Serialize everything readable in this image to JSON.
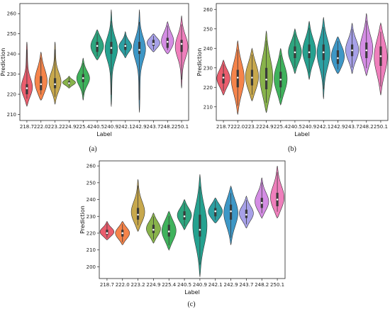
{
  "chart_data": [
    {
      "type": "violin",
      "panel": "(a)",
      "xlabel": "Label",
      "ylabel": "Prediction",
      "ylim": [
        207,
        265
      ],
      "yticks": [
        210,
        220,
        230,
        240,
        250,
        260
      ],
      "categories": [
        "218.7",
        "222.0",
        "223.2",
        "224.9",
        "225.4",
        "240.5",
        "240.9",
        "242.1",
        "242.9",
        "243.7",
        "248.2",
        "250.1"
      ],
      "violins": [
        {
          "min": 214,
          "q1": 220,
          "median": 223,
          "q3": 225,
          "max": 246
        },
        {
          "min": 217,
          "q1": 222,
          "median": 225,
          "q3": 229,
          "max": 241
        },
        {
          "min": 215,
          "q1": 223,
          "median": 225,
          "q3": 228,
          "max": 246
        },
        {
          "min": 223,
          "q1": 225,
          "median": 225.5,
          "q3": 226.5,
          "max": 229
        },
        {
          "min": 217,
          "q1": 226,
          "median": 228,
          "q3": 230,
          "max": 238
        },
        {
          "min": 237,
          "q1": 241,
          "median": 244,
          "q3": 246,
          "max": 252
        },
        {
          "min": 214,
          "q1": 240,
          "median": 243,
          "q3": 246,
          "max": 262
        },
        {
          "min": 238,
          "q1": 242,
          "median": 244,
          "q3": 245,
          "max": 251
        },
        {
          "min": 211,
          "q1": 240,
          "median": 242,
          "q3": 246,
          "max": 262
        },
        {
          "min": 241,
          "q1": 244,
          "median": 245,
          "q3": 247,
          "max": 250
        },
        {
          "min": 240,
          "q1": 243,
          "median": 246,
          "q3": 248,
          "max": 256
        },
        {
          "min": 223,
          "q1": 241,
          "median": 245,
          "q3": 247,
          "max": 259
        }
      ]
    },
    {
      "type": "violin",
      "panel": "(b)",
      "xlabel": "Label",
      "ylabel": "Prediction",
      "ylim": [
        203,
        263
      ],
      "yticks": [
        210,
        220,
        230,
        240,
        250,
        260
      ],
      "categories": [
        "218.7",
        "222.0",
        "223.2",
        "224.9",
        "225.4",
        "240.5",
        "240.9",
        "242.1",
        "242.9",
        "243.7",
        "248.2",
        "250.1"
      ],
      "violins": [
        {
          "min": 216,
          "q1": 222,
          "median": 225,
          "q3": 227,
          "max": 234
        },
        {
          "min": 206,
          "q1": 220,
          "median": 225,
          "q3": 229,
          "max": 244
        },
        {
          "min": 213,
          "q1": 221,
          "median": 225,
          "q3": 229,
          "max": 240
        },
        {
          "min": 207,
          "q1": 219,
          "median": 224,
          "q3": 230,
          "max": 249
        },
        {
          "min": 211,
          "q1": 220,
          "median": 224,
          "q3": 228,
          "max": 240
        },
        {
          "min": 227,
          "q1": 235,
          "median": 238,
          "q3": 241,
          "max": 250
        },
        {
          "min": 224,
          "q1": 235,
          "median": 238,
          "q3": 242,
          "max": 254
        },
        {
          "min": 214,
          "q1": 234,
          "median": 238,
          "q3": 242,
          "max": 256
        },
        {
          "min": 227,
          "q1": 232,
          "median": 235,
          "q3": 239,
          "max": 246
        },
        {
          "min": 227,
          "q1": 236,
          "median": 239,
          "q3": 242,
          "max": 253
        },
        {
          "min": 226,
          "q1": 235,
          "median": 239,
          "q3": 243,
          "max": 258
        },
        {
          "min": 216,
          "q1": 231,
          "median": 236,
          "q3": 241,
          "max": 253
        }
      ]
    },
    {
      "type": "violin",
      "panel": "(c)",
      "xlabel": "Label",
      "ylabel": "Prediction",
      "ylim": [
        193,
        263
      ],
      "yticks": [
        200,
        210,
        220,
        230,
        240,
        250,
        260
      ],
      "categories": [
        "218.7",
        "222.0",
        "223.2",
        "224.9",
        "225.4",
        "240.5",
        "240.9",
        "242.1",
        "242.9",
        "243.7",
        "248.2",
        "250.1"
      ],
      "violins": [
        {
          "min": 216,
          "q1": 219,
          "median": 220,
          "q3": 222,
          "max": 227
        },
        {
          "min": 213,
          "q1": 218,
          "median": 220,
          "q3": 222,
          "max": 227
        },
        {
          "min": 221,
          "q1": 228,
          "median": 231,
          "q3": 235,
          "max": 252
        },
        {
          "min": 214,
          "q1": 220,
          "median": 222,
          "q3": 225,
          "max": 232
        },
        {
          "min": 210,
          "q1": 218,
          "median": 221,
          "q3": 225,
          "max": 233
        },
        {
          "min": 222,
          "q1": 228,
          "median": 230,
          "q3": 233,
          "max": 240
        },
        {
          "min": 194,
          "q1": 218,
          "median": 222,
          "q3": 231,
          "max": 255
        },
        {
          "min": 226,
          "q1": 230,
          "median": 233,
          "q3": 235,
          "max": 241
        },
        {
          "min": 213,
          "q1": 228,
          "median": 233,
          "q3": 237,
          "max": 248
        },
        {
          "min": 223,
          "q1": 229,
          "median": 231,
          "q3": 234,
          "max": 242
        },
        {
          "min": 229,
          "q1": 235,
          "median": 238,
          "q3": 241,
          "max": 253
        },
        {
          "min": 229,
          "q1": 236,
          "median": 240,
          "q3": 244,
          "max": 260
        }
      ]
    }
  ],
  "palette": [
    "#3274a1",
    "#e1812c",
    "#3a923a",
    "#c03d3e",
    "#9372b2",
    "#845b53",
    "#d684bd",
    "#7f7f7f",
    "#a9aa35",
    "#2eaebd"
  ],
  "violin_colors": [
    [
      "#ea5d6d",
      "#f5844a",
      "#c7a84d",
      "#88b34b",
      "#3fb25c",
      "#2ea57f",
      "#25a18f",
      "#2d9fa2",
      "#3e97c6",
      "#a7a1e8",
      "#d48de4",
      "#ef7fbc"
    ],
    [
      "#ea5d6d",
      "#f5844a",
      "#c7a84d",
      "#88b34b",
      "#3fb25c",
      "#2ea57f",
      "#25a18f",
      "#2d9fa2",
      "#3e97c6",
      "#a7a1e8",
      "#d48de4",
      "#ef7fbc"
    ],
    [
      "#ea5d6d",
      "#f5844a",
      "#c7a84d",
      "#88b34b",
      "#3fb25c",
      "#2ea57f",
      "#25a18f",
      "#2d9fa2",
      "#3e97c6",
      "#a7a1e8",
      "#d48de4",
      "#ef7fbc"
    ]
  ]
}
